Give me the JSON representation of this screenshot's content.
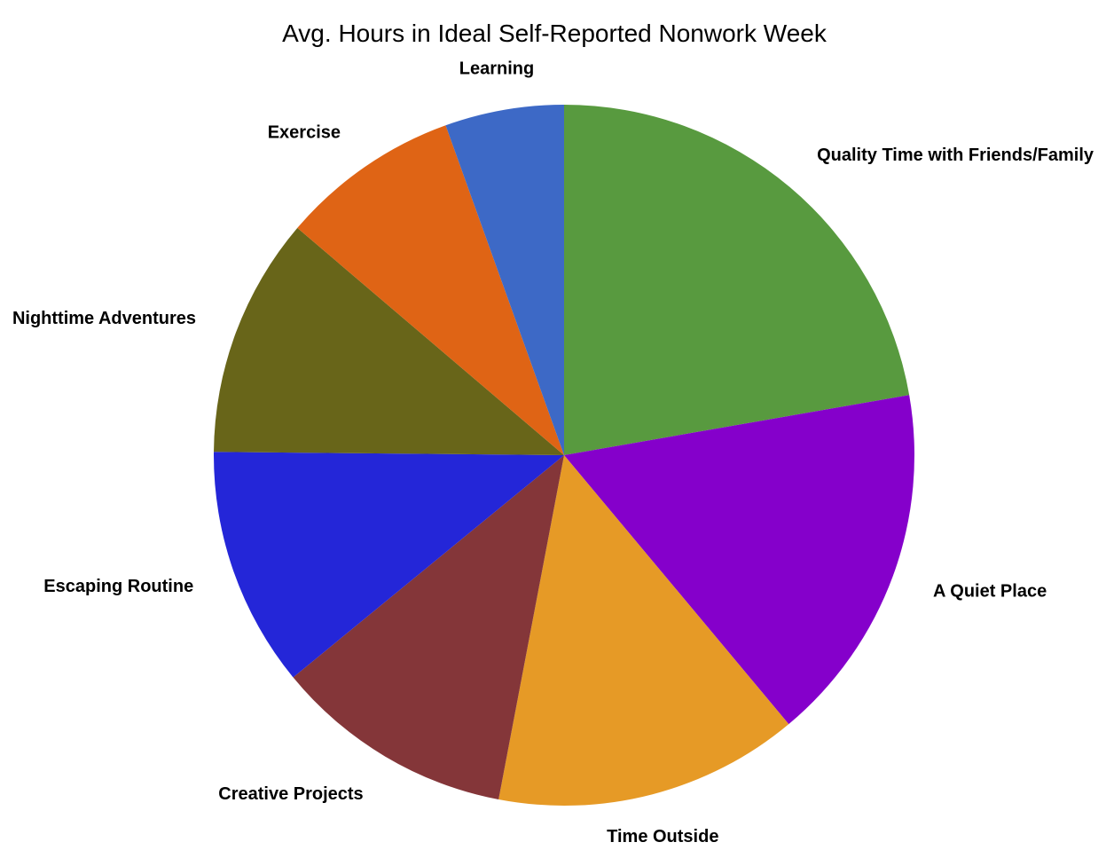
{
  "chart_data": {
    "type": "pie",
    "title": "Avg. Hours in Ideal Self-Reported Nonwork Week",
    "slices": [
      {
        "label": "Quality Time with Friends/Family",
        "value": 22.3,
        "color": "#589A3F"
      },
      {
        "label": "A Quiet Place",
        "value": 16.7,
        "color": "#8500CB"
      },
      {
        "label": "Time Outside",
        "value": 14.1,
        "color": "#E69A26"
      },
      {
        "label": "Creative Projects",
        "value": 11.1,
        "color": "#843639"
      },
      {
        "label": "Escaping Routine",
        "value": 11.1,
        "color": "#2426D8"
      },
      {
        "label": "Nighttime Adventures",
        "value": 11.1,
        "color": "#686519"
      },
      {
        "label": "Exercise",
        "value": 8.3,
        "color": "#DF6415"
      },
      {
        "label": "Learning",
        "value": 5.5,
        "color": "#3D69C6"
      }
    ],
    "start_angle_deg": 0,
    "direction": "clockwise",
    "legend": "none"
  }
}
